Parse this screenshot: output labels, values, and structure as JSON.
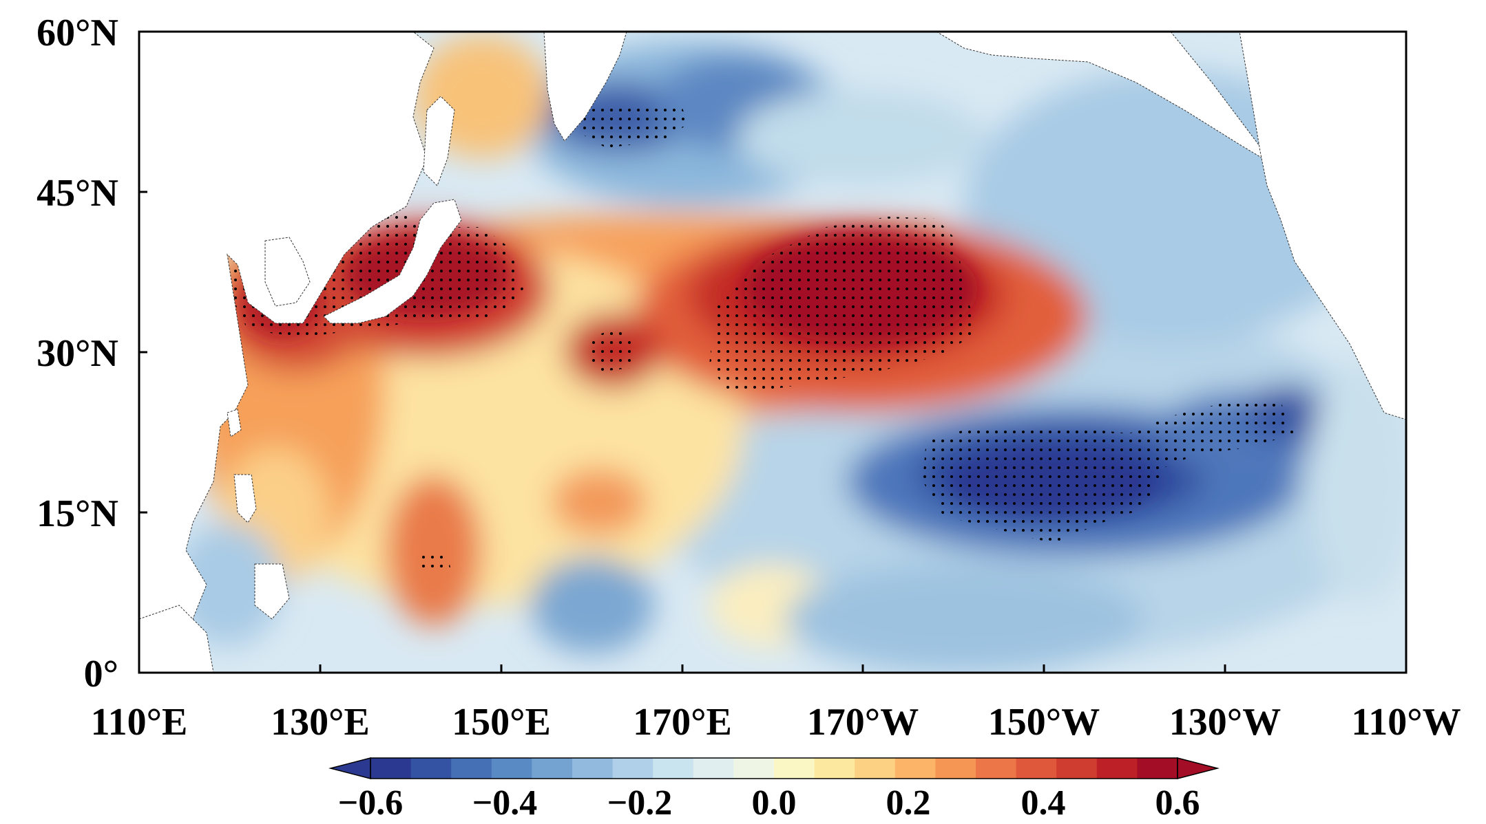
{
  "map": {
    "lon_ticks": [
      "110°E",
      "130°E",
      "150°E",
      "170°E",
      "170°W",
      "150°W",
      "130°W",
      "110°W"
    ],
    "lat_ticks": [
      "0°",
      "15°N",
      "30°N",
      "45°N",
      "60°N"
    ],
    "extent": {
      "lon_min": 110,
      "lon_max": 250,
      "lat_min": 0,
      "lat_max": 60
    },
    "field": "correlation-like anomaly, positive band along 30–45°N, negative off 15–25°N east Pacific",
    "stippling": "significant regions marked with black dots"
  },
  "colorbar": {
    "tick_labels": [
      "−0.6",
      "−0.4",
      "−0.2",
      "0.0",
      "0.2",
      "0.4",
      "0.6"
    ],
    "min": -0.6,
    "max": 0.6,
    "step": 0.05,
    "extend": "both",
    "colors": [
      "#2b3990",
      "#3453a3",
      "#4570b5",
      "#5a8ac4",
      "#74a3d2",
      "#92bade",
      "#afd0e8",
      "#c9e3ef",
      "#e1eef0",
      "#eef5e4",
      "#fbf7c5",
      "#fde8a0",
      "#fdd183",
      "#fbb468",
      "#f69655",
      "#ec7647",
      "#df583b",
      "#cf3c30",
      "#bd2127",
      "#a30d25"
    ]
  },
  "colors": {
    "land": "#ffffff",
    "coastline": "#333333",
    "frame": "#000000",
    "stipple": "#000000",
    "ocean_background": "#d9e9f3"
  }
}
